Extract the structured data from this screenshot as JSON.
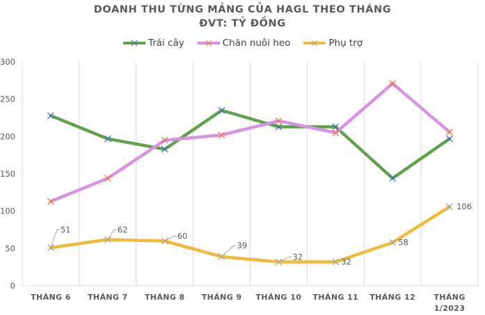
{
  "chart_data": {
    "type": "line",
    "title": "DOANH THU TỪNG MẢNG CỦA HAGL THEO THÁNG",
    "subtitle": "ĐVT: TỶ ĐỒNG",
    "xlabel": "",
    "ylabel": "",
    "ylim": [
      0,
      300
    ],
    "yticks": [
      0,
      50,
      100,
      150,
      200,
      250,
      300
    ],
    "grid": "vertical",
    "legend_position": "top",
    "categories": [
      "THÁNG 6",
      "THÁNG 7",
      "THÁNG 8",
      "THÁNG 9",
      "THÁNG 10",
      "THÁNG 11",
      "THÁNG 12",
      "THÁNG 1/2023"
    ],
    "series": [
      {
        "name": "Trái cây",
        "color": "#5EA34A",
        "marker_color": "#4472C4",
        "values": [
          228,
          197,
          183,
          235,
          213,
          213,
          144,
          197
        ],
        "labels_shown": false
      },
      {
        "name": "Chăn nuôi heo",
        "color": "#DB8FE5",
        "marker_color": "#ED7D31",
        "values": [
          113,
          144,
          195,
          202,
          221,
          205,
          271,
          206
        ],
        "labels_shown": false
      },
      {
        "name": "Phụ trợ",
        "color": "#F2B93B",
        "marker_color": "#A5A5A5",
        "values": [
          51,
          62,
          60,
          39,
          32,
          32,
          58,
          106
        ],
        "labels_shown": true
      }
    ]
  },
  "title": {
    "line1": "DOANH THU TỪNG MẢNG CỦA HAGL THEO THÁNG",
    "line2": "ĐVT: TỶ ĐỒNG"
  },
  "legend": [
    {
      "label": "Trái cây"
    },
    {
      "label": "Chăn nuôi heo"
    },
    {
      "label": "Phụ trợ"
    }
  ]
}
